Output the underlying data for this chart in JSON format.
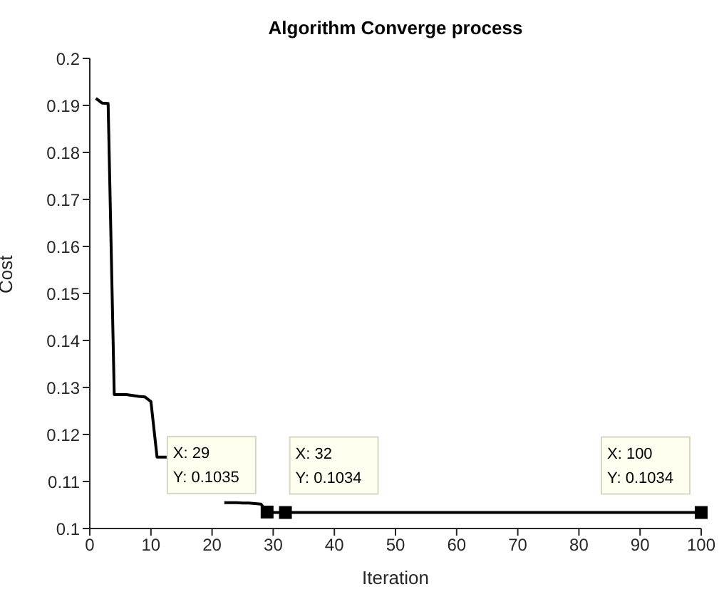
{
  "chart_data": {
    "type": "line",
    "title": "Algorithm Converge process",
    "xlabel": "Iteration",
    "ylabel": "Cost",
    "x": [
      1,
      2,
      3,
      4,
      5,
      6,
      7,
      8,
      9,
      10,
      11,
      12,
      13,
      14,
      15,
      16,
      17,
      18,
      19,
      20,
      21,
      22,
      23,
      24,
      25,
      26,
      27,
      28,
      29,
      30,
      31,
      32,
      40,
      50,
      60,
      70,
      80,
      90,
      100
    ],
    "series": [
      {
        "color": "#000000",
        "values": [
          0.1915,
          0.1905,
          0.1904,
          0.1285,
          0.1285,
          0.1285,
          0.1283,
          0.1281,
          0.128,
          0.127,
          0.1152,
          0.1152,
          0.1152,
          null,
          null,
          null,
          null,
          null,
          null,
          null,
          null,
          0.1055,
          0.1055,
          0.1055,
          0.1054,
          0.1054,
          0.1053,
          0.1052,
          0.1035,
          0.1034,
          0.1034,
          0.1034,
          0.1034,
          0.1034,
          0.1034,
          0.1034,
          0.1034,
          0.1034,
          0.1034
        ]
      }
    ],
    "xlim": [
      0,
      100
    ],
    "xticks": [
      0,
      10,
      20,
      30,
      40,
      50,
      60,
      70,
      80,
      90,
      100
    ],
    "ylim": [
      0.1,
      0.2
    ],
    "yticks": [
      0.1,
      0.11,
      0.12,
      0.13,
      0.14,
      0.15,
      0.16,
      0.17,
      0.18,
      0.19,
      0.2
    ],
    "grid": false,
    "legend": false,
    "marker": "none",
    "line_style": "solid",
    "annotations": [
      {
        "text": "X: 29\nY: 0.1035",
        "x": 29,
        "y": 0.1035
      },
      {
        "text": "X: 32\nY: 0.1034",
        "x": 32,
        "y": 0.1034
      },
      {
        "text": "X: 100\nY: 0.1034",
        "x": 100,
        "y": 0.1034
      }
    ]
  }
}
